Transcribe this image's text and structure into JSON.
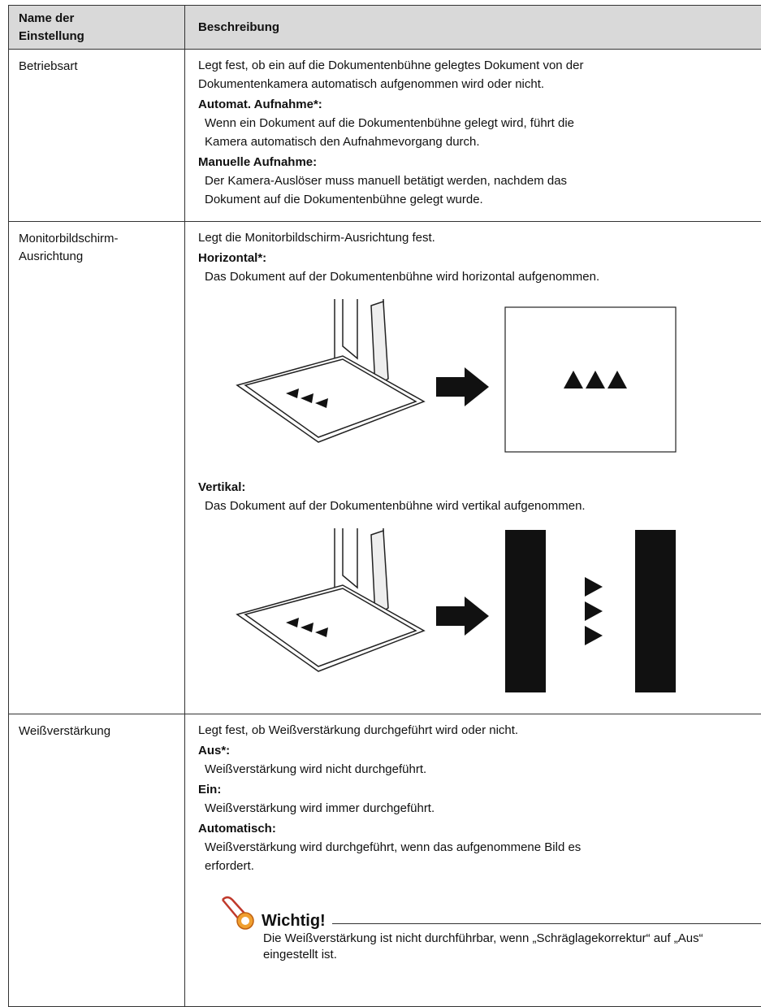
{
  "table": {
    "header": [
      "Name der Einstellung",
      "Beschreibung"
    ],
    "rows": [
      {
        "setting": "Betriebsart",
        "intro": "Legt fest, ob ein auf die Dokumentenbühne gelegtes Dokument von der Dokumentenkamera automatisch aufgenommen wird oder nicht.",
        "options": [
          {
            "label": "Automat. Aufnahme*:",
            "text": "Wenn ein Dokument auf die Dokumentenbühne gelegt wird, führt die Kamera automatisch den Aufnahmevorgang durch."
          },
          {
            "label": "Manuelle Aufnahme:",
            "text": "Der Kamera-Auslöser muss manuell betätigt werden, nachdem das Dokument auf die Dokumentenbühne gelegt wurde."
          }
        ]
      },
      {
        "setting": "Monitorbildschirm-Ausrichtung",
        "intro": "Legt die Monitorbildschirm-Ausrichtung fest.",
        "options": [
          {
            "label": "Horizontal*:",
            "text": "Das Dokument auf der Dokumentenbühne wird horizontal aufgenommen."
          },
          {
            "label": "Vertikal:",
            "text": "Das Dokument auf der Dokumentenbühne wird vertikal aufgenommen."
          }
        ]
      },
      {
        "setting": "Weißverstärkung",
        "intro": "Legt fest, ob Weißverstärkung durchgeführt wird oder nicht.",
        "options": [
          {
            "label": "Aus*:",
            "text": "Weißverstärkung wird nicht durchgeführt."
          },
          {
            "label": "Ein:",
            "text": "Weißverstärkung wird immer durchgeführt."
          },
          {
            "label": "Automatisch:",
            "text": "Weißverstärkung wird durchgeführt, wenn das aufgenommene Bild es erfordert."
          }
        ],
        "note": {
          "title": "Wichtig!",
          "text": "Die Weißverstärkung ist nicht durchführbar, wenn „Schräglagekorrektur“ auf „Aus“ eingestellt ist."
        }
      }
    ]
  }
}
